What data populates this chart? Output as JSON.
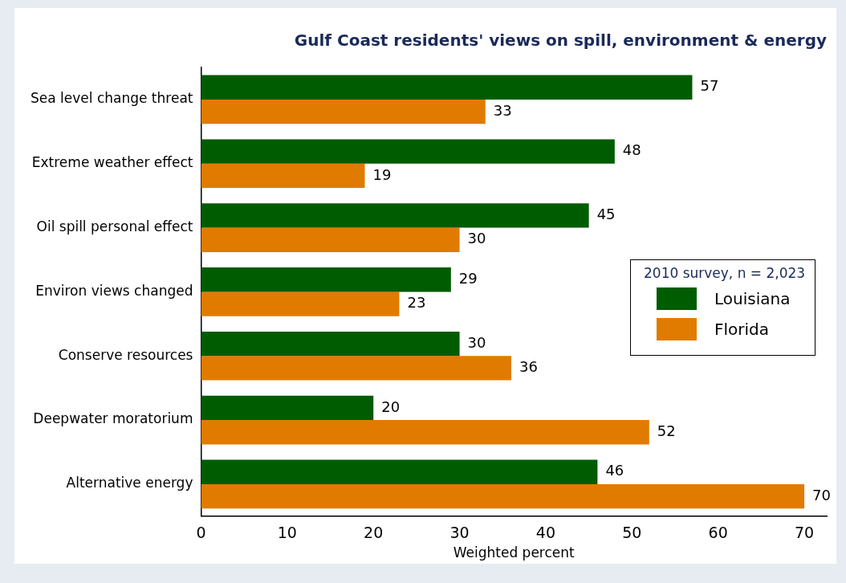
{
  "chart_data": {
    "type": "bar",
    "orientation": "horizontal",
    "title": "Gulf Coast residents' views on spill, environment & energy",
    "xlabel": "Weighted percent",
    "legend_title": "2010 survey, n = 2,023",
    "legend": "right",
    "categories": [
      "Sea level change threat",
      "Extreme weather effect",
      "Oil spill personal effect",
      "Environ views changed",
      "Conserve resources",
      "Deepwater moratorium",
      "Alternative energy"
    ],
    "series": [
      {
        "name": "Louisiana",
        "color": "#005c00",
        "values": [
          57,
          48,
          45,
          29,
          30,
          20,
          46
        ]
      },
      {
        "name": "Florida",
        "color": "#e07b00",
        "values": [
          33,
          19,
          30,
          23,
          36,
          52,
          70
        ]
      }
    ],
    "xlim": [
      0,
      72.6
    ],
    "xticks": [
      0,
      10,
      20,
      30,
      40,
      50,
      60,
      70
    ],
    "grid": false,
    "data_labels": true
  }
}
